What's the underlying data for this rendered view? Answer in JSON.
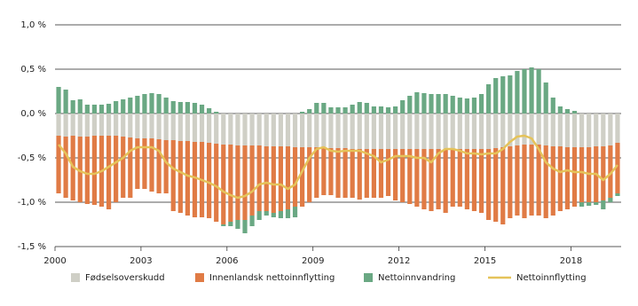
{
  "chart_data": {
    "type": "bar",
    "stacked": true,
    "categories": [
      "2000",
      null,
      null,
      null,
      null,
      null,
      null,
      null,
      null,
      null,
      null,
      null,
      "2003",
      null,
      null,
      null,
      null,
      null,
      null,
      null,
      null,
      null,
      null,
      null,
      "2006",
      null,
      null,
      null,
      null,
      null,
      null,
      null,
      null,
      null,
      null,
      null,
      "2009",
      null,
      null,
      null,
      null,
      null,
      null,
      null,
      null,
      null,
      null,
      null,
      "2012",
      null,
      null,
      null,
      null,
      null,
      null,
      null,
      null,
      null,
      null,
      null,
      "2015",
      null,
      null,
      null,
      null,
      null,
      null,
      null,
      null,
      null,
      null,
      null,
      "2018",
      null,
      null,
      null,
      null,
      null,
      null
    ],
    "ylim": [
      -1.5,
      1.0
    ],
    "yticks": [
      {
        "value": -1.5,
        "label": "-1,5 %"
      },
      {
        "value": -1.0,
        "label": "-1,0 %"
      },
      {
        "value": -0.5,
        "label": "-0,5 %"
      },
      {
        "value": 0,
        "label": "0,0 %"
      },
      {
        "value": 0.5,
        "label": "0,5 %"
      },
      {
        "value": 1.0,
        "label": "1,0 %"
      }
    ],
    "grid": true,
    "legend": "bottom",
    "series": [
      {
        "name": "Fødselsoverskudd",
        "type": "bar",
        "color": "#cfcfc6",
        "values": [
          -0.25,
          -0.26,
          -0.25,
          -0.26,
          -0.26,
          -0.25,
          -0.25,
          -0.25,
          -0.25,
          -0.26,
          -0.27,
          -0.28,
          -0.28,
          -0.28,
          -0.29,
          -0.3,
          -0.3,
          -0.31,
          -0.31,
          -0.32,
          -0.32,
          -0.33,
          -0.34,
          -0.35,
          -0.35,
          -0.36,
          -0.36,
          -0.36,
          -0.36,
          -0.37,
          -0.37,
          -0.37,
          -0.37,
          -0.38,
          -0.38,
          -0.38,
          -0.38,
          -0.39,
          -0.39,
          -0.39,
          -0.39,
          -0.4,
          -0.4,
          -0.4,
          -0.4,
          -0.4,
          -0.4,
          -0.4,
          -0.4,
          -0.4,
          -0.4,
          -0.4,
          -0.4,
          -0.4,
          -0.4,
          -0.4,
          -0.4,
          -0.4,
          -0.4,
          -0.4,
          -0.4,
          -0.39,
          -0.38,
          -0.37,
          -0.36,
          -0.35,
          -0.35,
          -0.35,
          -0.36,
          -0.37,
          -0.37,
          -0.38,
          -0.38,
          -0.38,
          -0.38,
          -0.37,
          -0.37,
          -0.36,
          -0.33
        ]
      },
      {
        "name": "Innenlandsk nettoinnflytting",
        "type": "bar",
        "color": "#e07b45",
        "values": [
          -0.65,
          -0.69,
          -0.73,
          -0.74,
          -0.76,
          -0.78,
          -0.8,
          -0.83,
          -0.75,
          -0.69,
          -0.68,
          -0.57,
          -0.57,
          -0.6,
          -0.61,
          -0.6,
          -0.8,
          -0.81,
          -0.84,
          -0.85,
          -0.85,
          -0.85,
          -0.88,
          -0.9,
          -0.87,
          -0.84,
          -0.84,
          -0.79,
          -0.74,
          -0.73,
          -0.75,
          -0.73,
          -0.71,
          -0.67,
          -0.67,
          -0.62,
          -0.57,
          -0.53,
          -0.53,
          -0.56,
          -0.56,
          -0.55,
          -0.57,
          -0.55,
          -0.55,
          -0.55,
          -0.53,
          -0.58,
          -0.6,
          -0.62,
          -0.65,
          -0.68,
          -0.7,
          -0.68,
          -0.72,
          -0.65,
          -0.65,
          -0.68,
          -0.7,
          -0.72,
          -0.8,
          -0.83,
          -0.87,
          -0.81,
          -0.79,
          -0.83,
          -0.8,
          -0.8,
          -0.82,
          -0.78,
          -0.73,
          -0.7,
          -0.67,
          -0.62,
          -0.62,
          -0.63,
          -0.61,
          -0.59,
          -0.57
        ]
      },
      {
        "name": "Nettoinnvandring",
        "type": "bar",
        "color": "#6aa883",
        "values": [
          0.3,
          0.27,
          0.15,
          0.16,
          0.1,
          0.1,
          0.1,
          0.11,
          0.14,
          0.16,
          0.18,
          0.2,
          0.22,
          0.23,
          0.22,
          0.18,
          0.14,
          0.13,
          0.13,
          0.12,
          0.1,
          0.06,
          0.02,
          -0.02,
          -0.05,
          -0.1,
          -0.15,
          -0.12,
          -0.1,
          -0.05,
          -0.05,
          -0.08,
          -0.1,
          -0.12,
          0.02,
          0.05,
          0.12,
          0.12,
          0.07,
          0.07,
          0.07,
          0.1,
          0.13,
          0.12,
          0.08,
          0.08,
          0.07,
          0.08,
          0.15,
          0.2,
          0.24,
          0.23,
          0.22,
          0.22,
          0.22,
          0.2,
          0.18,
          0.17,
          0.18,
          0.22,
          0.33,
          0.4,
          0.42,
          0.43,
          0.48,
          0.5,
          0.52,
          0.5,
          0.35,
          0.18,
          0.08,
          0.05,
          0.03,
          -0.05,
          -0.04,
          -0.03,
          -0.1,
          -0.05,
          -0.03
        ]
      },
      {
        "name": "Nettoinnflytting",
        "type": "line",
        "color": "#e5c35a",
        "values": [
          -0.35,
          -0.45,
          -0.6,
          -0.65,
          -0.68,
          -0.68,
          -0.65,
          -0.6,
          -0.55,
          -0.5,
          -0.42,
          -0.38,
          -0.38,
          -0.38,
          -0.42,
          -0.55,
          -0.62,
          -0.66,
          -0.7,
          -0.72,
          -0.75,
          -0.78,
          -0.82,
          -0.88,
          -0.92,
          -0.95,
          -0.93,
          -0.88,
          -0.8,
          -0.78,
          -0.8,
          -0.8,
          -0.85,
          -0.8,
          -0.65,
          -0.5,
          -0.4,
          -0.38,
          -0.42,
          -0.43,
          -0.42,
          -0.42,
          -0.42,
          -0.45,
          -0.48,
          -0.55,
          -0.52,
          -0.48,
          -0.48,
          -0.48,
          -0.5,
          -0.5,
          -0.55,
          -0.45,
          -0.4,
          -0.4,
          -0.42,
          -0.45,
          -0.45,
          -0.46,
          -0.45,
          -0.45,
          -0.4,
          -0.32,
          -0.26,
          -0.25,
          -0.28,
          -0.4,
          -0.55,
          -0.62,
          -0.66,
          -0.64,
          -0.66,
          -0.66,
          -0.68,
          -0.68,
          -0.75,
          -0.68,
          -0.58
        ]
      }
    ]
  }
}
